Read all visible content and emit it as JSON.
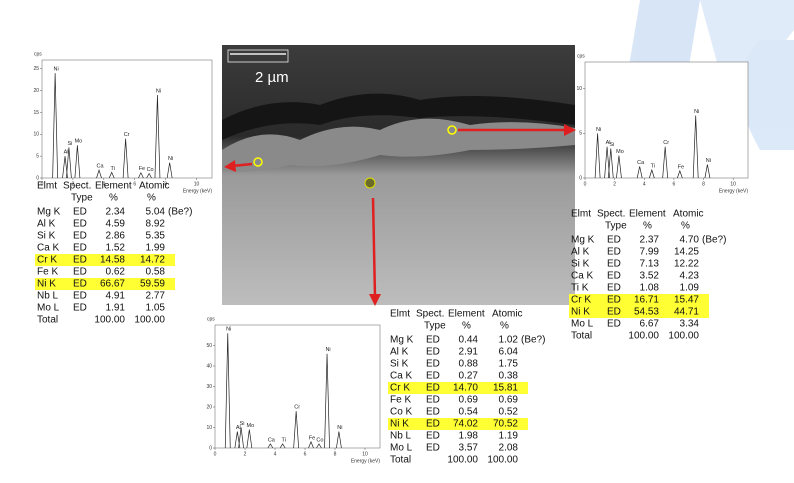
{
  "scale_label": "2 µm",
  "spectra": [
    {
      "ylabel": "cps",
      "xlabel": "Energy (keV)",
      "xlim": [
        0,
        11
      ],
      "ylim": [
        0,
        27
      ],
      "xticks": [
        0,
        2,
        4,
        6,
        8,
        10
      ],
      "yticks": [
        0,
        5,
        10,
        15,
        20,
        25
      ],
      "peaks": [
        {
          "label": "Ni",
          "x": 0.85,
          "y": 24
        },
        {
          "label": "Al",
          "x": 1.49,
          "y": 5
        },
        {
          "label": "Si",
          "x": 1.74,
          "y": 7
        },
        {
          "label": "Mo",
          "x": 2.29,
          "y": 7.5
        },
        {
          "label": "Ca",
          "x": 3.69,
          "y": 1.8
        },
        {
          "label": "Ti",
          "x": 4.51,
          "y": 1.3
        },
        {
          "label": "Cr",
          "x": 5.41,
          "y": 9
        },
        {
          "label": "Fe",
          "x": 6.4,
          "y": 1.2
        },
        {
          "label": "Co",
          "x": 6.93,
          "y": 1
        },
        {
          "label": "Ni",
          "x": 7.47,
          "y": 19
        },
        {
          "label": "Ni",
          "x": 8.26,
          "y": 3.5
        }
      ]
    },
    {
      "ylabel": "cps",
      "xlabel": "Energy (keV)",
      "xlim": [
        0,
        11
      ],
      "ylim": [
        0,
        60
      ],
      "xticks": [
        0,
        2,
        4,
        6,
        8,
        10
      ],
      "yticks": [
        0,
        10,
        20,
        30,
        40,
        50
      ],
      "peaks": [
        {
          "label": "Ni",
          "x": 0.85,
          "y": 56
        },
        {
          "label": "Al",
          "x": 1.49,
          "y": 8
        },
        {
          "label": "Si",
          "x": 1.74,
          "y": 10
        },
        {
          "label": "Mo",
          "x": 2.29,
          "y": 9
        },
        {
          "label": "Ca",
          "x": 3.69,
          "y": 2
        },
        {
          "label": "Ti",
          "x": 4.51,
          "y": 2
        },
        {
          "label": "Cr",
          "x": 5.41,
          "y": 18
        },
        {
          "label": "Fe",
          "x": 6.4,
          "y": 3
        },
        {
          "label": "Co",
          "x": 6.93,
          "y": 2
        },
        {
          "label": "Ni",
          "x": 7.47,
          "y": 46
        },
        {
          "label": "Ni",
          "x": 8.26,
          "y": 8
        }
      ]
    },
    {
      "ylabel": "cps",
      "xlabel": "Energy (keV)",
      "xlim": [
        0,
        11
      ],
      "ylim": [
        0,
        13
      ],
      "xticks": [
        0,
        2,
        4,
        6,
        8,
        10
      ],
      "yticks": [
        0,
        5,
        10
      ],
      "peaks": [
        {
          "label": "Ni",
          "x": 0.85,
          "y": 5
        },
        {
          "label": "Al",
          "x": 1.49,
          "y": 3.5
        },
        {
          "label": "Si",
          "x": 1.74,
          "y": 3.3
        },
        {
          "label": "Mo",
          "x": 2.29,
          "y": 2.5
        },
        {
          "label": "Ca",
          "x": 3.69,
          "y": 1.3
        },
        {
          "label": "Ti",
          "x": 4.51,
          "y": 0.9
        },
        {
          "label": "Cr",
          "x": 5.41,
          "y": 3.5
        },
        {
          "label": "Fe",
          "x": 6.4,
          "y": 0.8
        },
        {
          "label": "Ni",
          "x": 7.47,
          "y": 7
        },
        {
          "label": "Ni",
          "x": 8.26,
          "y": 1.5
        }
      ]
    }
  ],
  "tables": [
    {
      "header": [
        [
          "Elmt",
          "Spect.",
          "Element",
          "Atomic"
        ],
        [
          "Type",
          "%",
          "%"
        ]
      ],
      "rows": [
        {
          "cells": [
            "Mg K",
            "ED",
            "2.34",
            "5.04",
            "(Be?)"
          ],
          "color": "#2a34b0"
        },
        {
          "cells": [
            "Al K",
            "ED",
            "4.59",
            "8.92"
          ],
          "color": "#2a34b0"
        },
        {
          "cells": [
            "Si K",
            "ED",
            "2.86",
            "5.35"
          ],
          "color": "#2a34b0"
        },
        {
          "cells": [
            "Ca K",
            "ED",
            "1.52",
            "1.99"
          ]
        },
        {
          "cells": [
            "Cr K",
            "ED",
            "14.58",
            "14.72"
          ],
          "highlight": true
        },
        {
          "cells": [
            "Fe K",
            "ED",
            "0.62",
            "0.58"
          ]
        },
        {
          "cells": [
            "Ni K",
            "ED",
            "66.67",
            "59.59"
          ],
          "highlight": true
        },
        {
          "cells": [
            "Nb L",
            "ED",
            "4.91",
            "2.77"
          ]
        },
        {
          "cells": [
            "Mo L",
            "ED",
            "1.91",
            "1.05"
          ]
        },
        {
          "cells": [
            "Total",
            "100.00",
            "100.00"
          ],
          "total": true
        }
      ]
    },
    {
      "header": [
        [
          "Elmt",
          "Spect.",
          "Element",
          "Atomic"
        ],
        [
          "Type",
          "%",
          "%"
        ]
      ],
      "rows": [
        {
          "cells": [
            "Mg K",
            "ED",
            "0.44",
            "1.02",
            "(Be?)"
          ]
        },
        {
          "cells": [
            "Al K",
            "ED",
            "2.91",
            "6.04"
          ]
        },
        {
          "cells": [
            "Si K",
            "ED",
            "0.88",
            "1.75"
          ]
        },
        {
          "cells": [
            "Ca K",
            "ED",
            "0.27",
            "0.38"
          ]
        },
        {
          "cells": [
            "Cr K",
            "ED",
            "14.70",
            "15.81"
          ],
          "highlight": true
        },
        {
          "cells": [
            "Fe K",
            "ED",
            "0.69",
            "0.69"
          ]
        },
        {
          "cells": [
            "Co K",
            "ED",
            "0.54",
            "0.52"
          ]
        },
        {
          "cells": [
            "Ni K",
            "ED",
            "74.02",
            "70.52"
          ],
          "highlight": true
        },
        {
          "cells": [
            "Nb L",
            "ED",
            "1.98",
            "1.19"
          ]
        },
        {
          "cells": [
            "Mo L",
            "ED",
            "3.57",
            "2.08"
          ]
        },
        {
          "cells": [
            "Total",
            "100.00",
            "100.00"
          ],
          "total": true
        }
      ]
    },
    {
      "header": [
        [
          "Elmt",
          "Spect.",
          "Element",
          "Atomic"
        ],
        [
          "Type",
          "%",
          "%"
        ]
      ],
      "rows": [
        {
          "cells": [
            "Mg K",
            "ED",
            "2.37",
            "4.70",
            "(Be?)"
          ],
          "color": "#2a34b0"
        },
        {
          "cells": [
            "Al K",
            "ED",
            "7.99",
            "14.25"
          ],
          "color": "#2a34b0"
        },
        {
          "cells": [
            "Si K",
            "ED",
            "7.13",
            "12.22"
          ],
          "color": "#2a34b0"
        },
        {
          "cells": [
            "Ca K",
            "ED",
            "3.52",
            "4.23"
          ]
        },
        {
          "cells": [
            "Ti K",
            "ED",
            "1.08",
            "1.09"
          ]
        },
        {
          "cells": [
            "Cr K",
            "ED",
            "16.71",
            "15.47"
          ],
          "highlight": true
        },
        {
          "cells": [
            "Ni K",
            "ED",
            "54.53",
            "44.71"
          ],
          "highlight": true
        },
        {
          "cells": [
            "Mo L",
            "ED",
            "6.67",
            "3.34"
          ]
        },
        {
          "cells": [
            "Total",
            "100.00",
            "100.00"
          ],
          "total": true
        }
      ]
    }
  ]
}
